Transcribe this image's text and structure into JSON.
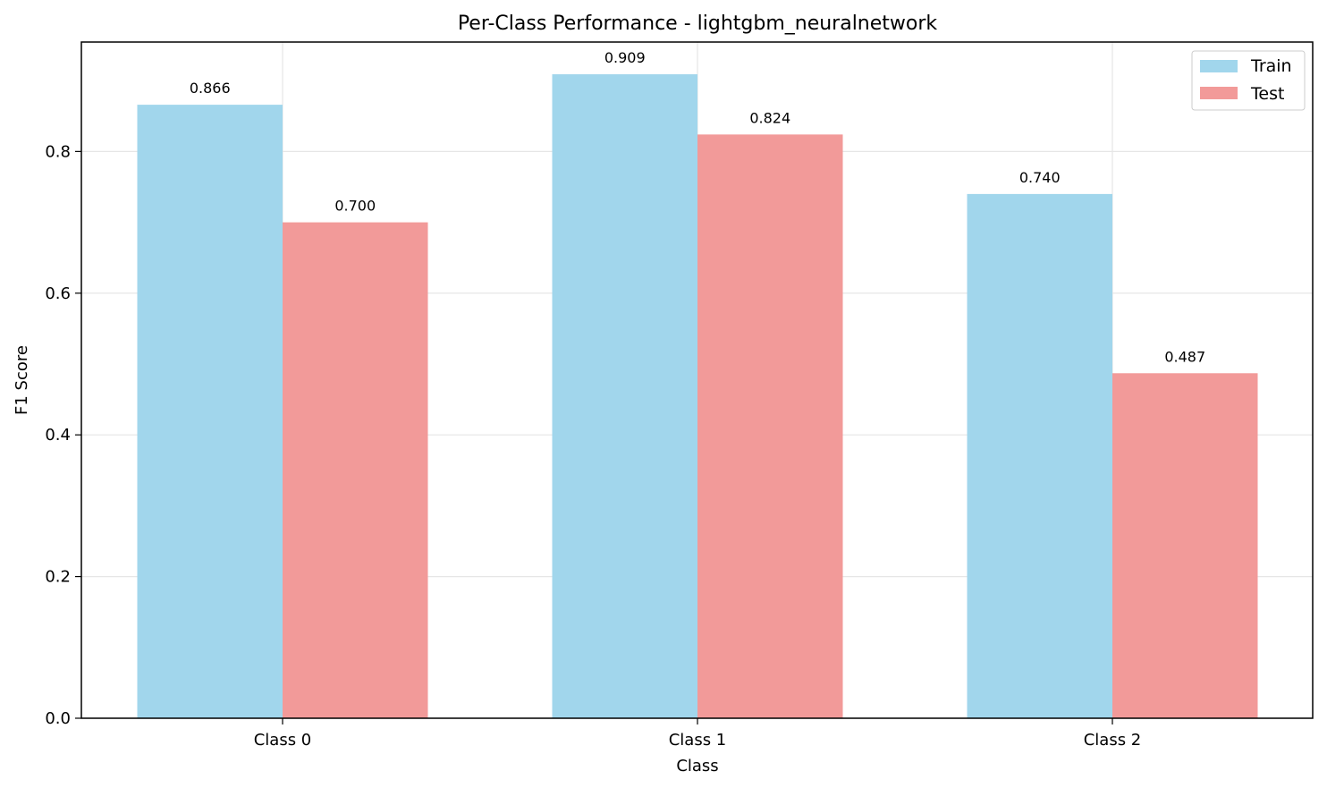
{
  "colors": {
    "train": "#a1d6ec",
    "test": "#f29a99",
    "grid": "#e6e6e6",
    "axis": "#000000"
  },
  "chart_data": {
    "type": "bar",
    "title": "Per-Class Performance - lightgbm_neuralnetwork",
    "xlabel": "Class",
    "ylabel": "F1 Score",
    "categories": [
      "Class 0",
      "Class 1",
      "Class 2"
    ],
    "series": [
      {
        "name": "Train",
        "values": [
          0.866,
          0.909,
          0.74
        ],
        "labels": [
          "0.866",
          "0.909",
          "0.740"
        ]
      },
      {
        "name": "Test",
        "values": [
          0.7,
          0.824,
          0.487
        ],
        "labels": [
          "0.700",
          "0.824",
          "0.487"
        ]
      }
    ],
    "ylim": [
      0,
      0.9545
    ],
    "yticks": [
      0.0,
      0.2,
      0.4,
      0.6,
      0.8
    ],
    "ytick_labels": [
      "0.0",
      "0.2",
      "0.4",
      "0.6",
      "0.8"
    ],
    "grid": true,
    "legend": "top-right"
  }
}
